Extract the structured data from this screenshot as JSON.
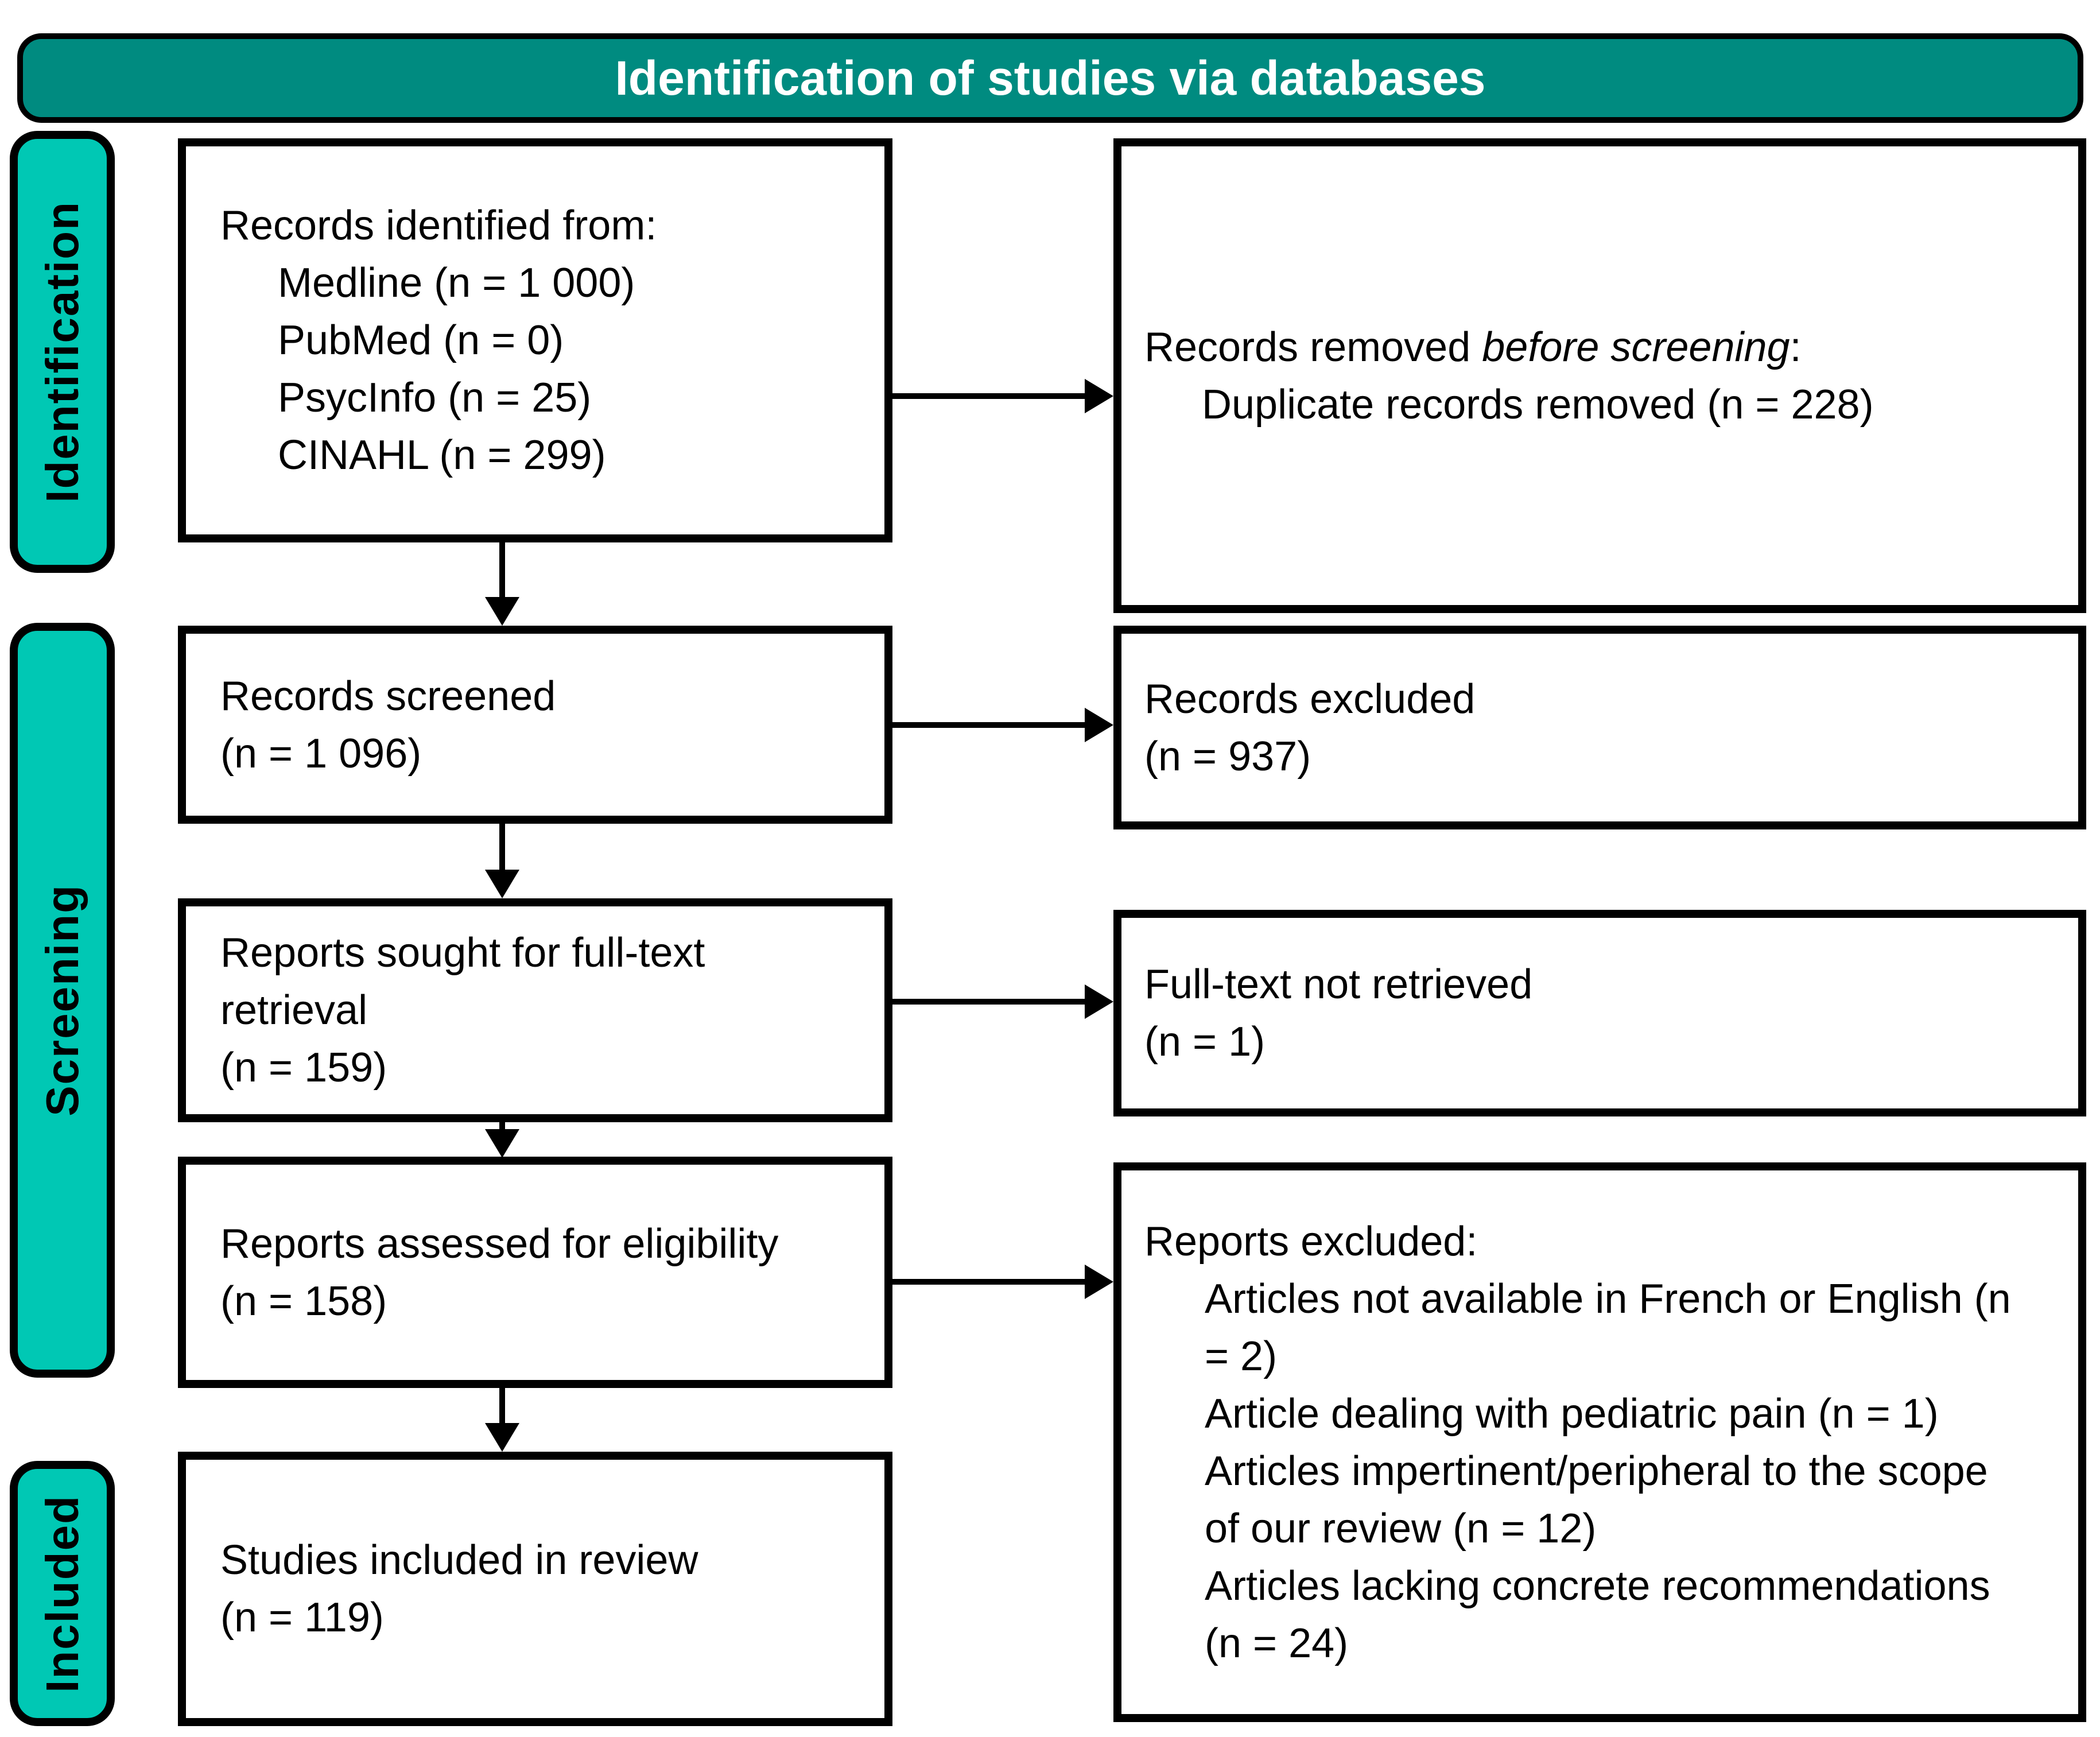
{
  "header": {
    "title": "Identification of studies via databases",
    "bg_color": "#008B80"
  },
  "stages": {
    "identification": "Identification",
    "screening": "Screening",
    "included": "Included"
  },
  "accent": {
    "stage_fill": "#00C8B4",
    "box_border": "#000000"
  },
  "boxes": {
    "records_identified": {
      "heading": "Records identified from:",
      "items": [
        "Medline (n = 1 000)",
        "PubMed (n = 0)",
        "PsycInfo (n = 25)",
        "CINAHL (n = 299)"
      ]
    },
    "records_removed": {
      "prefix": "Records removed ",
      "emphasis": "before screening",
      "suffix": ":",
      "items": [
        "Duplicate records removed (n = 228)"
      ]
    },
    "records_screened": {
      "lines": [
        "Records screened",
        "(n = 1 096)"
      ]
    },
    "records_excluded": {
      "lines": [
        "Records excluded",
        "(n = 937)"
      ]
    },
    "reports_sought": {
      "lines": [
        "Reports sought for full-text",
        "retrieval",
        "(n = 159)"
      ]
    },
    "fulltext_not_retrieved": {
      "lines": [
        "Full-text not retrieved",
        "(n = 1)"
      ]
    },
    "reports_assessed": {
      "lines": [
        "Reports assessed for eligibility",
        "(n = 158)"
      ]
    },
    "reports_excluded": {
      "heading": "Reports excluded:",
      "items": [
        "Articles not available in French or English (n = 2)",
        "Article dealing with pediatric pain (n = 1)",
        "Articles impertinent/peripheral to the scope of our review (n = 12)",
        "Articles lacking concrete recommendations (n = 24)"
      ]
    },
    "studies_included": {
      "lines": [
        "Studies included in review",
        "(n = 119)"
      ]
    }
  }
}
